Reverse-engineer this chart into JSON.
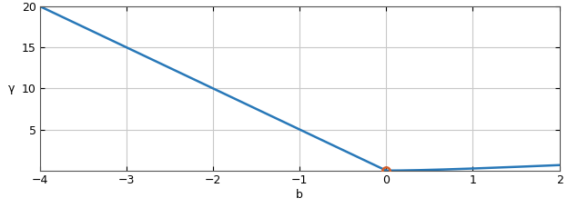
{
  "xlim": [
    -4,
    2
  ],
  "ylim": [
    0,
    20
  ],
  "xticks": [
    -4,
    -3,
    -2,
    -1,
    0,
    1,
    2
  ],
  "yticks": [
    5,
    10,
    15,
    20
  ],
  "line_color": "#2878b8",
  "marker_color": "#d45f2a",
  "marker_x": 0,
  "marker_y": 0,
  "xlabel": "b",
  "ylabel": "γ",
  "background_color": "#ffffff",
  "grid_color": "#c8c8c8",
  "line_width": 1.8
}
